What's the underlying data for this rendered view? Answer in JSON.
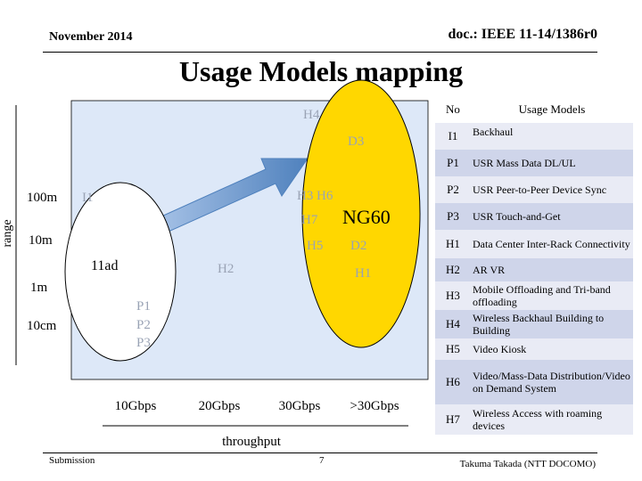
{
  "header": {
    "date": "November 2014",
    "doc": "doc.: IEEE 11-14/1386r0"
  },
  "title": "Usage Models mapping",
  "footer": {
    "left": "Submission",
    "page": "7",
    "author": "Takuma Takada (NTT DOCOMO)"
  },
  "diagram": {
    "y_axis_label": "range",
    "x_axis_label": "throughput",
    "y_ticks": [
      "100m",
      "10m",
      "1m",
      "10cm"
    ],
    "x_ticks": [
      "10Gbps",
      "20Gbps",
      "30Gbps",
      ">30Gbps"
    ],
    "region_labels": {
      "ng60": "NG60",
      "ad11": "11ad"
    },
    "points": {
      "h4": "H4",
      "d3": "D3",
      "i1": "I1",
      "h3": "H3",
      "h6": "H6",
      "h7": "H7",
      "h5": "H5",
      "d2": "D2",
      "h2": "H2",
      "h1": "H1",
      "p1": "P1",
      "p2": "P2",
      "p3": "P3"
    },
    "colors": {
      "plot_bg": "#dde8f8",
      "ellipse_ng60": "#ffd700",
      "ellipse_11ad": "#ffffff",
      "arrow": "#4f81bd"
    }
  },
  "table": {
    "col_no": "No",
    "col_models": "Usage Models",
    "rows": [
      {
        "no": "I1",
        "model": "Backhaul"
      },
      {
        "no": "P1",
        "model": "USR Mass Data DL/UL"
      },
      {
        "no": "P2",
        "model": "USR Peer-to-Peer Device Sync"
      },
      {
        "no": "P3",
        "model": "USR Touch-and-Get"
      },
      {
        "no": "H1",
        "model": "Data Center Inter-Rack Connectivity"
      },
      {
        "no": "H2",
        "model": "AR VR"
      },
      {
        "no": "H3",
        "model": "Mobile Offloading and Tri-band offloading"
      },
      {
        "no": "H4",
        "model": "Wireless Backhaul Building to Building"
      },
      {
        "no": "H5",
        "model": "Video Kiosk"
      },
      {
        "no": "H6",
        "model": "Video/Mass-Data Distribution/Video on Demand System"
      },
      {
        "no": "H7",
        "model": "Wireless Access with roaming devices"
      }
    ]
  }
}
